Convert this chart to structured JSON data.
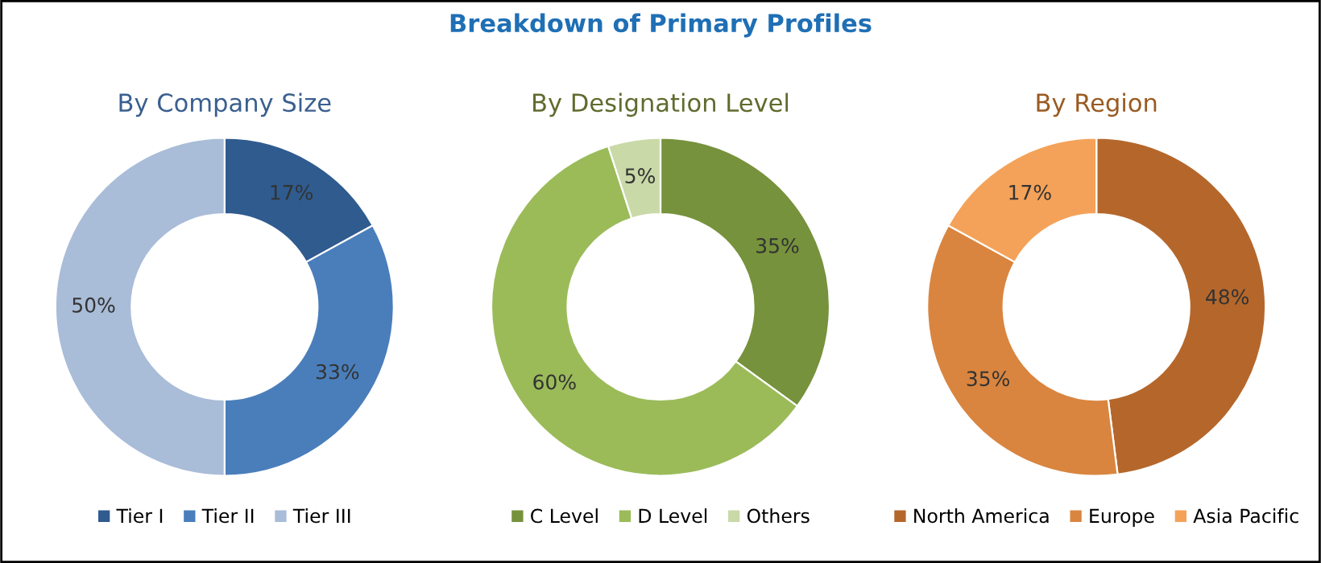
{
  "chart_data": [
    {
      "type": "other",
      "title": "Breakdown of Primary Profiles"
    },
    {
      "type": "donut",
      "title": "By Company Size",
      "categories": [
        "Tier I",
        "Tier II",
        "Tier III"
      ],
      "values": [
        17,
        33,
        50
      ],
      "value_labels": [
        "17%",
        "33%",
        "50%"
      ],
      "colors": [
        "#2f5b8f",
        "#4a7ebb",
        "#a9bcd8"
      ],
      "legend": "bottom"
    },
    {
      "type": "donut",
      "title": "By Designation Level",
      "categories": [
        "C Level",
        "D Level",
        "Others"
      ],
      "values": [
        35,
        60,
        5
      ],
      "value_labels": [
        "35%",
        "60%",
        "5%"
      ],
      "colors": [
        "#76923c",
        "#9bbb59",
        "#c9d9a8"
      ],
      "legend": "bottom"
    },
    {
      "type": "donut",
      "title": "By Region",
      "categories": [
        "North America",
        "Europe",
        "Asia Pacific"
      ],
      "values": [
        48,
        35,
        17
      ],
      "value_labels": [
        "48%",
        "35%",
        "17%"
      ],
      "colors": [
        "#b5672b",
        "#d9853f",
        "#f4a259"
      ],
      "legend": "bottom"
    }
  ]
}
